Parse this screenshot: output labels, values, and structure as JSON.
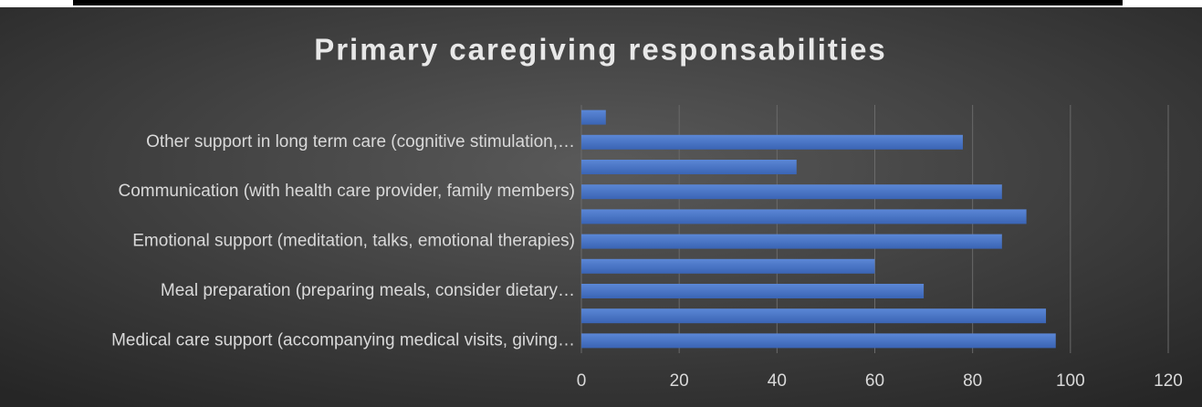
{
  "chart_data": {
    "type": "bar",
    "orientation": "horizontal",
    "title": "Primary caregiving responsabilities",
    "categories": [
      "Medical care support (accompanying medical visits, giving…",
      null,
      "Meal preparation (preparing meals, consider dietary…",
      null,
      "Emotional support (meditation, talks, emotional therapies)",
      null,
      "Communication (with health care provider, family members)",
      null,
      "Other support in long term care (cognitive stimulation,…",
      null
    ],
    "values": [
      97,
      95,
      70,
      60,
      86,
      91,
      86,
      44,
      78,
      5
    ],
    "color": "#4472c4",
    "xlim": [
      0,
      120
    ],
    "xticks": [
      0,
      20,
      40,
      60,
      80,
      100,
      120
    ],
    "grid": true
  }
}
